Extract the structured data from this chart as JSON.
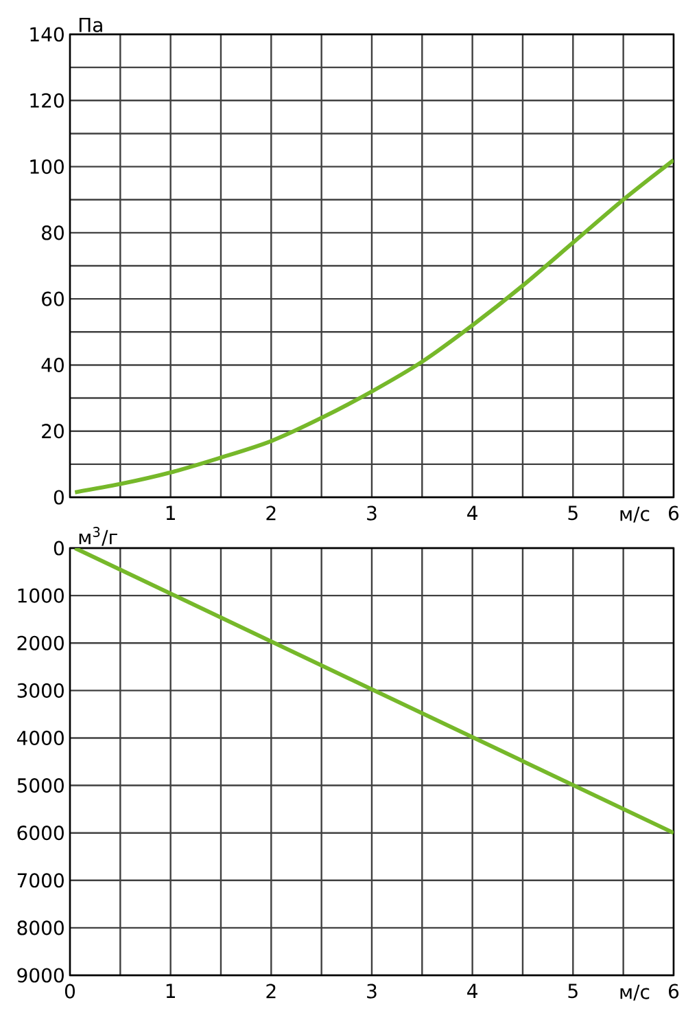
{
  "chart_data": [
    {
      "type": "line",
      "xlabel": "м/с",
      "ylabel": "Па",
      "xlim": [
        0,
        6
      ],
      "ylim": [
        0,
        140
      ],
      "xticks": [
        {
          "value": 0,
          "label": null
        },
        {
          "value": 0.5,
          "label": null
        },
        1,
        {
          "value": 1.5,
          "label": null
        },
        2,
        {
          "value": 2.5,
          "label": null
        },
        3,
        {
          "value": 3.5,
          "label": null
        },
        4,
        {
          "value": 4.5,
          "label": null
        },
        5,
        {
          "value": 5.5,
          "label": null
        },
        6
      ],
      "yticks": [
        0,
        {
          "value": 10,
          "label": null
        },
        20,
        {
          "value": 30,
          "label": null
        },
        40,
        {
          "value": 50,
          "label": null
        },
        60,
        {
          "value": 70,
          "label": null
        },
        80,
        {
          "value": 90,
          "label": null
        },
        100,
        {
          "value": 110,
          "label": null
        },
        120,
        {
          "value": 130,
          "label": null
        },
        140
      ],
      "grid": true,
      "series": [
        {
          "color": "#76b82a",
          "x": [
            0.05,
            0.5,
            1,
            1.5,
            2,
            2.5,
            3,
            3.5,
            4,
            4.5,
            5,
            5.5,
            6
          ],
          "values": [
            1.5,
            4,
            7.5,
            12,
            17,
            24,
            32,
            41,
            52,
            64,
            77,
            90,
            102
          ]
        }
      ]
    },
    {
      "type": "line",
      "xlabel": "м/с",
      "ylabel": "м$^{3}$/г",
      "xlim": [
        0,
        6
      ],
      "ylim": [
        9000,
        0
      ],
      "xticks": [
        0,
        {
          "value": 0.5,
          "label": null
        },
        1,
        {
          "value": 1.5,
          "label": null
        },
        2,
        {
          "value": 2.5,
          "label": null
        },
        3,
        {
          "value": 3.5,
          "label": null
        },
        4,
        {
          "value": 4.5,
          "label": null
        },
        5,
        {
          "value": 5.5,
          "label": null
        },
        6
      ],
      "yticks": [
        0,
        1000,
        2000,
        3000,
        4000,
        5000,
        6000,
        7000,
        8000,
        9000
      ],
      "grid": true,
      "series": [
        {
          "color": "#76b82a",
          "x": [
            0.05,
            6
          ],
          "values": [
            0,
            6000
          ]
        }
      ]
    }
  ]
}
